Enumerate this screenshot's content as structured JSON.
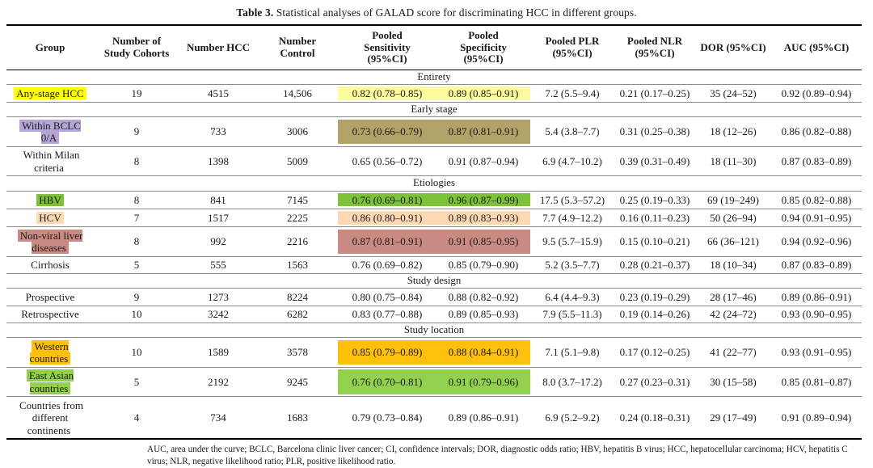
{
  "title": {
    "label": "Table 3.",
    "text": " Statistical analyses of GALAD score for discriminating HCC in different groups."
  },
  "table": {
    "columns": [
      "Group",
      "Number of\nStudy Cohorts",
      "Number HCC",
      "Number\nControl",
      "Pooled\nSensitivity\n(95%CI)",
      "Pooled\nSpecificity\n(95%CI)",
      "Pooled PLR\n(95%CI)",
      "Pooled NLR\n(95%CI)",
      "DOR (95%CI)",
      "AUC (95%CI)"
    ],
    "cell_names": [
      "study-cohorts-cell",
      "hcc-count-cell",
      "control-count-cell",
      "sensitivity-cell",
      "specificity-cell",
      "plr-cell",
      "nlr-cell",
      "dor-cell",
      "auc-cell"
    ],
    "highlight_colors": {
      "yellow_label": "#ffff00",
      "yellow_cells": "#fcfc9c",
      "purple_label": "#b6a4d4",
      "khaki_cells": "#b2a269",
      "hbv_green": "#7dc23a",
      "hcv_peach": "#fcd9b2",
      "nonviral_rose": "#ca8a84",
      "western_orange": "#ffc00d",
      "east_asian_green": "#92d04e"
    },
    "sections": [
      {
        "name": "Entirety",
        "rows": [
          {
            "group": "Any-stage HCC",
            "label_highlight": "#ffff00",
            "cell_highlight": "#fcfc9c",
            "cells": [
              "19",
              "4515",
              "14,506",
              "0.82 (0.78–0.85)",
              "0.89 (0.85–0.91)",
              "7.2 (5.5–9.4)",
              "0.21 (0.17–0.25)",
              "35 (24–52)",
              "0.92 (0.89–0.94)"
            ]
          }
        ]
      },
      {
        "name": "Early stage",
        "rows": [
          {
            "group": "Within BCLC\n0/A",
            "label_highlight": "#b6a4d4",
            "cell_highlight": "#b2a269",
            "cells": [
              "9",
              "733",
              "3006",
              "0.73 (0.66–0.79)",
              "0.87 (0.81–0.91)",
              "5.4 (3.8–7.7)",
              "0.31 (0.25–0.38)",
              "18 (12–26)",
              "0.86 (0.82–0.88)"
            ]
          },
          {
            "group": "Within Milan\ncriteria",
            "label_highlight": null,
            "cell_highlight": null,
            "cells": [
              "8",
              "1398",
              "5009",
              "0.65 (0.56–0.72)",
              "0.91 (0.87–0.94)",
              "6.9 (4.7–10.2)",
              "0.39 (0.31–0.49)",
              "18 (11–30)",
              "0.87 (0.83–0.89)"
            ]
          }
        ]
      },
      {
        "name": "Etiologies",
        "rows": [
          {
            "group": "HBV",
            "label_highlight": "#7dc23a",
            "cell_highlight": "#7dc23a",
            "cells": [
              "8",
              "841",
              "7145",
              "0.76 (0.69–0.81)",
              "0.96 (0.87–0.99)",
              "17.5 (5.3–57.2)",
              "0.25 (0.19–0.33)",
              "69 (19–249)",
              "0.85 (0.82–0.88)"
            ]
          },
          {
            "group": "HCV",
            "label_highlight": "#fcd9b2",
            "cell_highlight": "#fcd9b2",
            "cells": [
              "7",
              "1517",
              "2225",
              "0.86 (0.80–0.91)",
              "0.89 (0.83–0.93)",
              "7.7 (4.9–12.2)",
              "0.16 (0.11–0.23)",
              "50 (26–94)",
              "0.94 (0.91–0.95)"
            ]
          },
          {
            "group": "Non-viral liver\ndiseases",
            "label_highlight": "#ca8a84",
            "cell_highlight": "#ca8a84",
            "cells": [
              "8",
              "992",
              "2216",
              "0.87 (0.81–0.91)",
              "0.91 (0.85–0.95)",
              "9.5 (5.7–15.9)",
              "0.15 (0.10–0.21)",
              "66 (36–121)",
              "0.94 (0.92–0.96)"
            ]
          },
          {
            "group": "Cirrhosis",
            "label_highlight": null,
            "cell_highlight": null,
            "cells": [
              "5",
              "555",
              "1563",
              "0.76 (0.69–0.82)",
              "0.85 (0.79–0.90)",
              "5.2 (3.5–7.7)",
              "0.28 (0.21–0.37)",
              "18 (10–34)",
              "0.87 (0.83–0.89)"
            ]
          }
        ]
      },
      {
        "name": "Study design",
        "rows": [
          {
            "group": "Prospective",
            "label_highlight": null,
            "cell_highlight": null,
            "cells": [
              "9",
              "1273",
              "8224",
              "0.80 (0.75–0.84)",
              "0.88 (0.82–0.92)",
              "6.4 (4.4–9.3)",
              "0.23 (0.19–0.29)",
              "28 (17–46)",
              "0.89 (0.86–0.91)"
            ]
          },
          {
            "group": "Retrospective",
            "label_highlight": null,
            "cell_highlight": null,
            "cells": [
              "10",
              "3242",
              "6282",
              "0.83 (0.77–0.88)",
              "0.89 (0.85–0.93)",
              "7.9 (5.5–11.3)",
              "0.19 (0.14–0.26)",
              "42 (24–72)",
              "0.93 (0.90–0.95)"
            ]
          }
        ]
      },
      {
        "name": "Study location",
        "rows": [
          {
            "group": "Western\ncountries",
            "label_highlight": "#ffc00d",
            "cell_highlight": "#ffc00d",
            "cells": [
              "10",
              "1589",
              "3578",
              "0.85 (0.79–0.89)",
              "0.88 (0.84–0.91)",
              "7.1 (5.1–9.8)",
              "0.17 (0.12–0.25)",
              "41 (22–77)",
              "0.93 (0.91–0.95)"
            ]
          },
          {
            "group": "East Asian\ncountries",
            "label_highlight": "#92d04e",
            "cell_highlight": "#92d04e",
            "cells": [
              "5",
              "2192",
              "9245",
              "0.76 (0.70–0.81)",
              "0.91 (0.79–0.96)",
              "8.0 (3.7–17.2)",
              "0.27 (0.23–0.31)",
              "30 (15–58)",
              "0.85 (0.81–0.87)"
            ]
          },
          {
            "group": "Countries from\ndifferent\ncontinents",
            "label_highlight": null,
            "cell_highlight": null,
            "cells": [
              "4",
              "734",
              "1683",
              "0.79 (0.73–0.84)",
              "0.89 (0.86–0.91)",
              "6.9 (5.2–9.2)",
              "0.24 (0.18–0.31)",
              "29 (17–49)",
              "0.91 (0.89–0.94)"
            ]
          }
        ]
      }
    ]
  },
  "footnote": "AUC, area under the curve; BCLC, Barcelona clinic liver cancer; CI, confidence intervals; DOR, diagnostic odds ratio; HBV, hepatitis B virus; HCC, hepatocellular carcinoma; HCV, hepatitis C virus; NLR, negative likelihood ratio; PLR, positive likelihood ratio."
}
